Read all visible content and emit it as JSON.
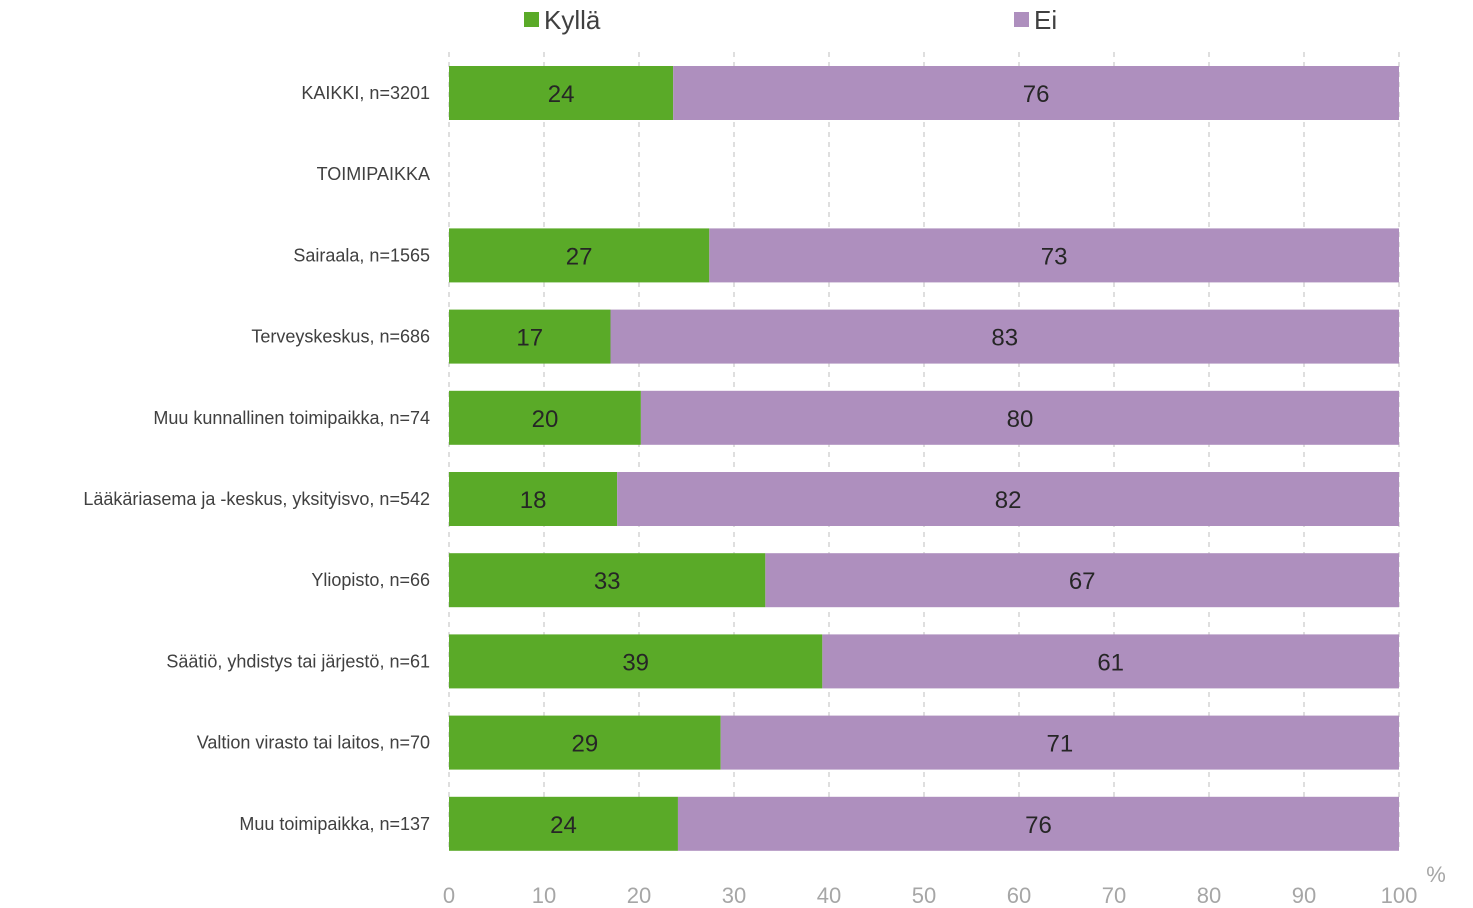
{
  "chart_data": {
    "type": "bar",
    "orientation": "horizontal",
    "stacked": true,
    "categories": [
      "KAIKKI, n=3201",
      "TOIMIPAIKKA",
      "Sairaala, n=1565",
      "Terveyskeskus, n=686",
      "Muu kunnallinen toimipaikka, n=74",
      "Lääkäriasema ja -keskus, yksityisvo, n=542",
      "Yliopisto, n=66",
      "Säätiö, yhdistys tai järjestö, n=61",
      "Valtion virasto tai laitos, n=70",
      "Muu toimipaikka, n=137"
    ],
    "series": [
      {
        "name": "Kyllä",
        "color": "#5aaa28",
        "values": [
          23.6,
          null,
          27.4,
          17.0,
          20.2,
          17.7,
          33.3,
          39.3,
          28.6,
          24.1
        ],
        "labels": [
          "24",
          "",
          "27",
          "17",
          "20",
          "18",
          "33",
          "39",
          "29",
          "24"
        ]
      },
      {
        "name": "Ei",
        "color": "#ae8fbe",
        "values": [
          76.4,
          null,
          72.6,
          83.0,
          79.8,
          82.3,
          66.7,
          60.7,
          71.4,
          75.9
        ],
        "labels": [
          "76",
          "",
          "73",
          "83",
          "80",
          "82",
          "67",
          "61",
          "71",
          "76"
        ]
      }
    ],
    "xlim": [
      0,
      100
    ],
    "xticks": [
      0,
      10,
      20,
      30,
      40,
      50,
      60,
      70,
      80,
      90,
      100
    ],
    "xunit": "%",
    "grid": "vertical-dashed",
    "legend_position": "top"
  }
}
